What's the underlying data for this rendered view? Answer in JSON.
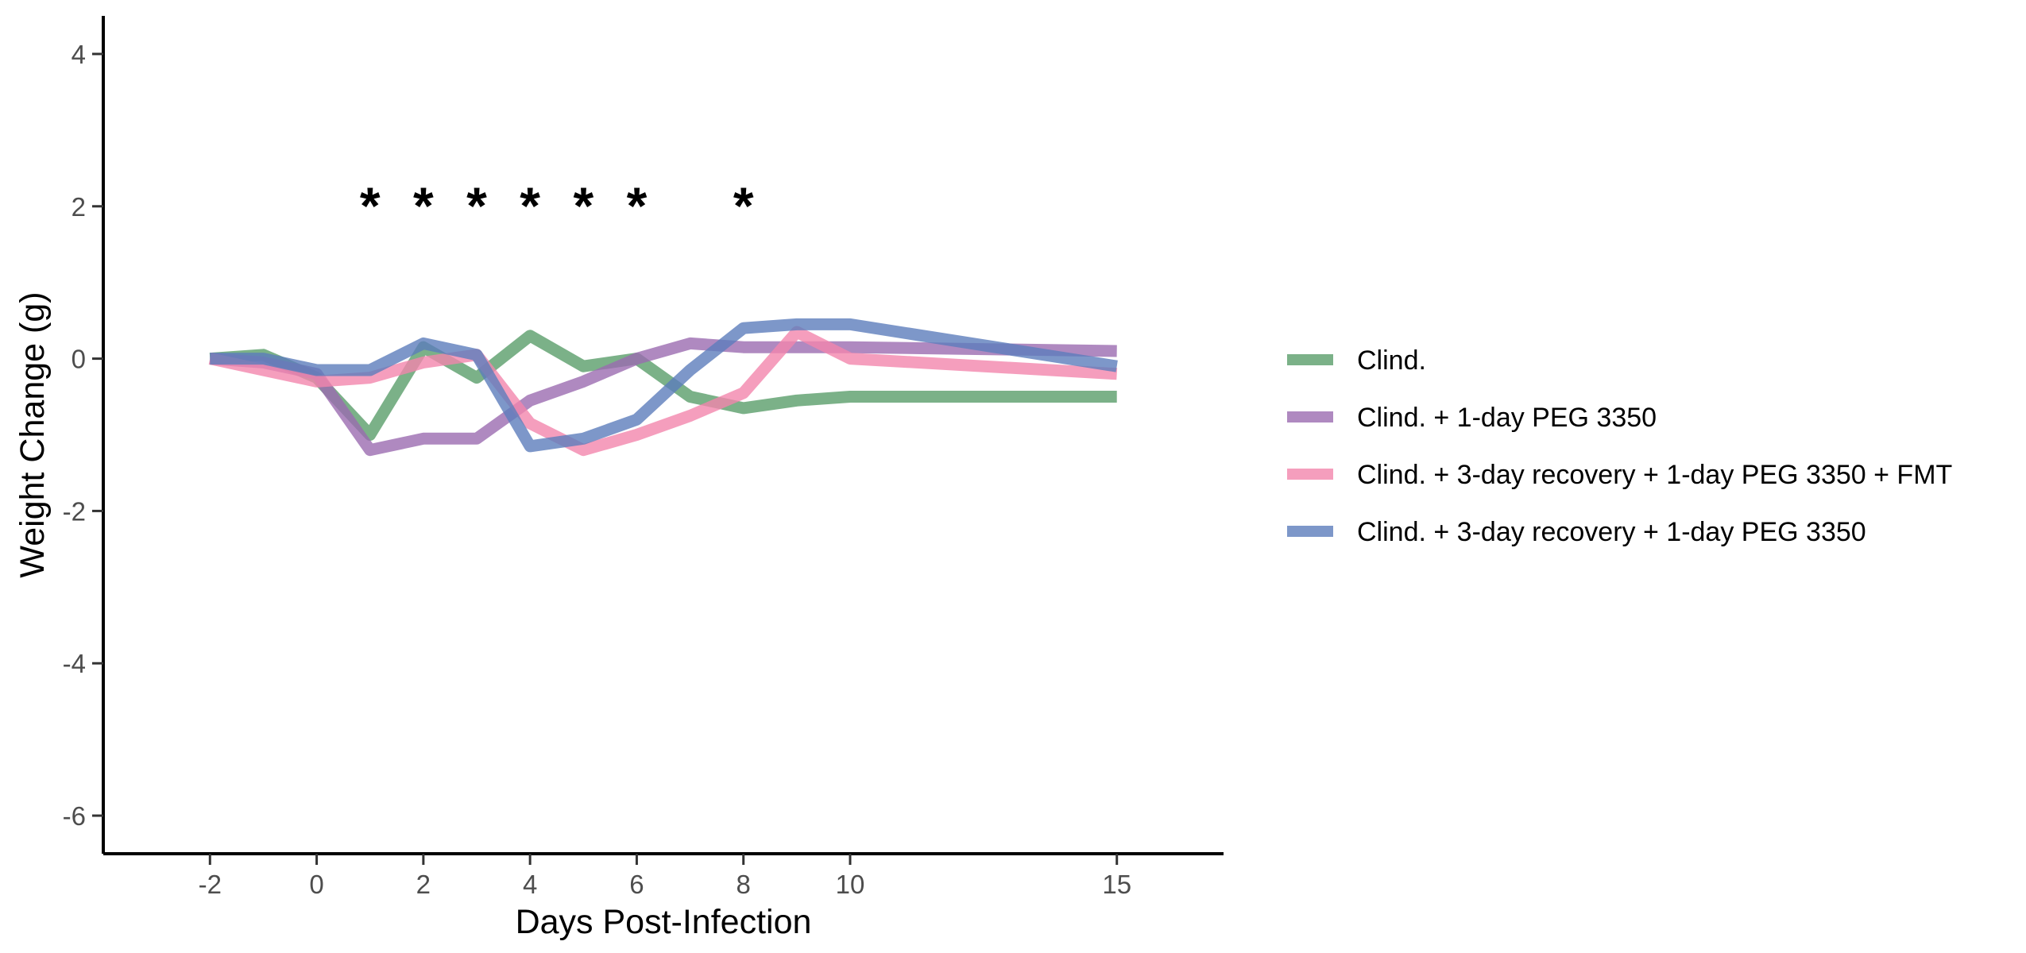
{
  "chart_data": {
    "type": "line",
    "xlabel": "Days Post-Infection",
    "ylabel": "Weight Change (g)",
    "xlim": [
      -4,
      17
    ],
    "ylim": [
      -6.5,
      4.5
    ],
    "x_ticks": [
      -2,
      0,
      2,
      4,
      6,
      8,
      10,
      15
    ],
    "x_tick_labels": [
      "-2",
      "0",
      "2",
      "4",
      "6",
      "8",
      "10",
      "15"
    ],
    "y_ticks": [
      4,
      2,
      0,
      -2,
      -4,
      -6
    ],
    "y_tick_labels": [
      "4",
      "2",
      "0",
      "-2",
      "-4",
      "-6"
    ],
    "grid": false,
    "legend_position": "right",
    "x": [
      -2,
      -1,
      0,
      1,
      2,
      3,
      4,
      5,
      6,
      7,
      8,
      9,
      10,
      15
    ],
    "series": [
      {
        "name": "Clind.",
        "color": "#5a9e6a",
        "values": [
          0.0,
          0.05,
          -0.25,
          -1.0,
          0.15,
          -0.25,
          0.3,
          -0.1,
          0.0,
          -0.5,
          -0.65,
          -0.55,
          -0.5,
          -0.5
        ]
      },
      {
        "name": "Clind. + 1-day PEG 3350",
        "color": "#9b6bb0",
        "values": [
          0.0,
          -0.05,
          -0.2,
          -1.2,
          -1.05,
          -1.05,
          -0.55,
          -0.3,
          0.0,
          0.2,
          0.15,
          0.15,
          0.15,
          0.1
        ]
      },
      {
        "name": "Clind. + 3-day recovery + 1-day PEG 3350 + FMT",
        "color": "#f386ad",
        "values": [
          0.0,
          -0.15,
          -0.3,
          -0.25,
          -0.05,
          0.05,
          -0.85,
          -1.2,
          -1.0,
          -0.75,
          -0.45,
          0.35,
          0.0,
          -0.2
        ]
      },
      {
        "name": "Clind. + 3-day recovery + 1-day PEG 3350",
        "color": "#5d7dbb",
        "values": [
          0.0,
          0.0,
          -0.15,
          -0.15,
          0.2,
          0.05,
          -1.15,
          -1.05,
          -0.8,
          -0.15,
          0.4,
          0.45,
          0.45,
          -0.1
        ]
      }
    ],
    "annotations": [
      {
        "text": "*",
        "x": 1,
        "y": 2
      },
      {
        "text": "*",
        "x": 2,
        "y": 2
      },
      {
        "text": "*",
        "x": 3,
        "y": 2
      },
      {
        "text": "*",
        "x": 4,
        "y": 2
      },
      {
        "text": "*",
        "x": 5,
        "y": 2
      },
      {
        "text": "*",
        "x": 6,
        "y": 2
      },
      {
        "text": "*",
        "x": 8,
        "y": 2
      }
    ]
  }
}
